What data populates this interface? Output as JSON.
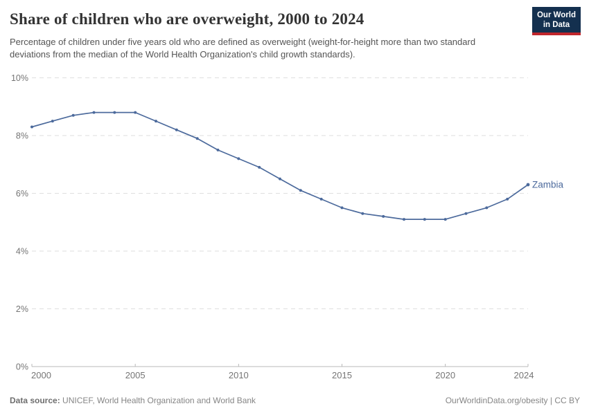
{
  "header": {
    "title": "Share of children who are overweight, 2000 to 2024",
    "subtitle": "Percentage of children under five years old who are defined as overweight (weight-for-height more than two standard deviations from the median of the World Health Organization's child growth standards).",
    "logo": {
      "line1": "Our World",
      "line2": "in Data",
      "bg_color": "#14304F",
      "stripe_color": "#C0262C"
    }
  },
  "chart_data": {
    "type": "line",
    "title": "Share of children who are overweight, 2000 to 2024",
    "x": [
      2000,
      2001,
      2002,
      2003,
      2004,
      2005,
      2006,
      2007,
      2008,
      2009,
      2010,
      2011,
      2012,
      2013,
      2014,
      2015,
      2016,
      2017,
      2018,
      2019,
      2020,
      2021,
      2022,
      2023,
      2024
    ],
    "series": [
      {
        "name": "Zambia",
        "color": "#4C6A9C",
        "values": [
          8.3,
          8.5,
          8.7,
          8.8,
          8.8,
          8.8,
          8.5,
          8.2,
          7.9,
          7.5,
          7.2,
          6.9,
          6.5,
          6.1,
          5.8,
          5.5,
          5.3,
          5.2,
          5.1,
          5.1,
          5.1,
          5.3,
          5.5,
          5.8,
          6.3
        ]
      }
    ],
    "xlabel": "",
    "ylabel": "",
    "xlim": [
      2000,
      2024
    ],
    "ylim": [
      0,
      10
    ],
    "x_ticks": [
      2000,
      2005,
      2010,
      2015,
      2020,
      2024
    ],
    "y_ticks": [
      0,
      2,
      4,
      6,
      8,
      10
    ],
    "y_tick_suffix": "%",
    "grid": "horizontal-dashed",
    "legend_position": "end-of-line-label",
    "marker": "dot"
  },
  "footer": {
    "data_source_label": "Data source:",
    "data_source_value": "UNICEF, World Health Organization and World Bank",
    "attribution": "OurWorldinData.org/obesity | CC BY"
  },
  "colors": {
    "line": "#4C6A9C",
    "grid": "#dedede",
    "axis": "#b9b9b9",
    "tick_label": "#757575",
    "end_label": "#4C6A9C"
  }
}
